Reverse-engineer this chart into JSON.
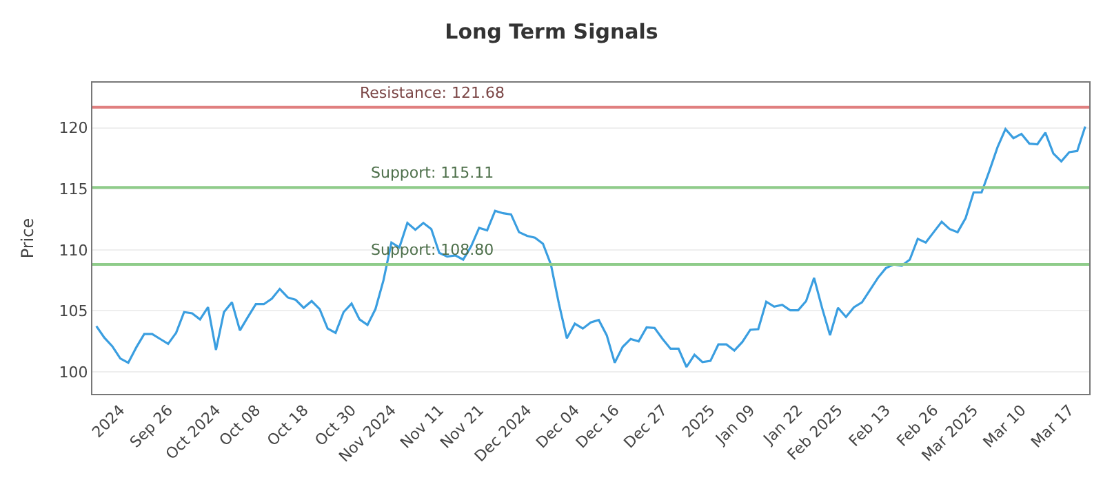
{
  "chart_data": {
    "type": "line",
    "title": "Long Term Signals",
    "ylabel": "Price",
    "categories": [
      null,
      null,
      null,
      "2024",
      null,
      null,
      null,
      null,
      null,
      "Sep 26",
      null,
      null,
      null,
      null,
      null,
      "Oct 2024",
      null,
      null,
      null,
      null,
      "Oct 08",
      null,
      null,
      null,
      null,
      null,
      "Oct 18",
      null,
      null,
      null,
      null,
      null,
      "Oct 30",
      null,
      null,
      null,
      null,
      "Nov 2024",
      null,
      null,
      null,
      null,
      null,
      "Nov 11",
      null,
      null,
      null,
      null,
      "Nov 21",
      null,
      null,
      null,
      null,
      null,
      "Dec 2024",
      null,
      null,
      null,
      null,
      null,
      "Dec 04",
      null,
      null,
      null,
      null,
      "Dec 16",
      null,
      null,
      null,
      null,
      null,
      "Dec 27",
      null,
      null,
      null,
      null,
      null,
      "2025",
      null,
      null,
      null,
      null,
      "Jan 09",
      null,
      null,
      null,
      null,
      null,
      "Jan 22",
      null,
      null,
      null,
      null,
      "Feb 2025",
      null,
      null,
      null,
      null,
      null,
      "Feb 13",
      null,
      null,
      null,
      null,
      null,
      "Feb 26",
      null,
      null,
      null,
      null,
      "Mar 2025",
      null,
      null,
      null,
      null,
      null,
      "Mar 10",
      null,
      null,
      null,
      null,
      null,
      "Mar 17",
      null,
      null
    ],
    "series": [
      {
        "color": "#3a9ee0",
        "values": [
          103.75,
          102.8,
          102.1,
          101.1,
          100.75,
          102.0,
          103.1,
          103.1,
          102.7,
          102.3,
          103.2,
          104.9,
          104.8,
          104.3,
          105.3,
          101.8,
          104.9,
          105.7,
          103.4,
          104.5,
          105.55,
          105.55,
          106.0,
          106.8,
          106.1,
          105.9,
          105.25,
          105.8,
          105.15,
          103.55,
          103.2,
          104.9,
          105.6,
          104.3,
          103.85,
          105.15,
          107.5,
          110.6,
          110.2,
          112.2,
          111.65,
          112.2,
          111.7,
          109.75,
          109.45,
          109.55,
          109.2,
          110.3,
          111.8,
          111.6,
          113.2,
          113.0,
          112.9,
          111.45,
          111.15,
          111.0,
          110.5,
          108.8,
          105.6,
          102.75,
          103.95,
          103.55,
          104.05,
          104.25,
          103.0,
          100.75,
          102.05,
          102.7,
          102.5,
          103.65,
          103.6,
          102.7,
          101.9,
          101.9,
          100.4,
          101.4,
          100.8,
          100.9,
          102.25,
          102.25,
          101.75,
          102.45,
          103.45,
          103.5,
          105.75,
          105.35,
          105.5,
          105.05,
          105.05,
          105.8,
          107.7,
          105.25,
          103.0,
          105.25,
          104.5,
          105.3,
          105.7,
          106.7,
          107.7,
          108.5,
          108.8,
          108.7,
          109.2,
          110.9,
          110.6,
          111.45,
          112.3,
          111.7,
          111.45,
          112.6,
          114.7,
          114.7,
          116.5,
          118.4,
          119.9,
          119.15,
          119.5,
          118.7,
          118.65,
          119.6,
          117.9,
          117.25,
          118.0,
          118.1,
          120.1
        ]
      }
    ],
    "ylim": [
      98.2,
      123.7
    ],
    "yticks": [
      100,
      105,
      110,
      115,
      120
    ],
    "grid": "y",
    "marker": "none",
    "line_style": "solid",
    "ref_lines": [
      {
        "axis": "y",
        "value": 121.68,
        "label": "Resistance: 121.68",
        "color": "#e08080"
      },
      {
        "axis": "y",
        "value": 115.11,
        "label": "Support: 115.11",
        "color": "#8fcc8a"
      },
      {
        "axis": "y",
        "value": 108.8,
        "label": "Support: 108.80",
        "color": "#8fcc8a"
      }
    ]
  }
}
